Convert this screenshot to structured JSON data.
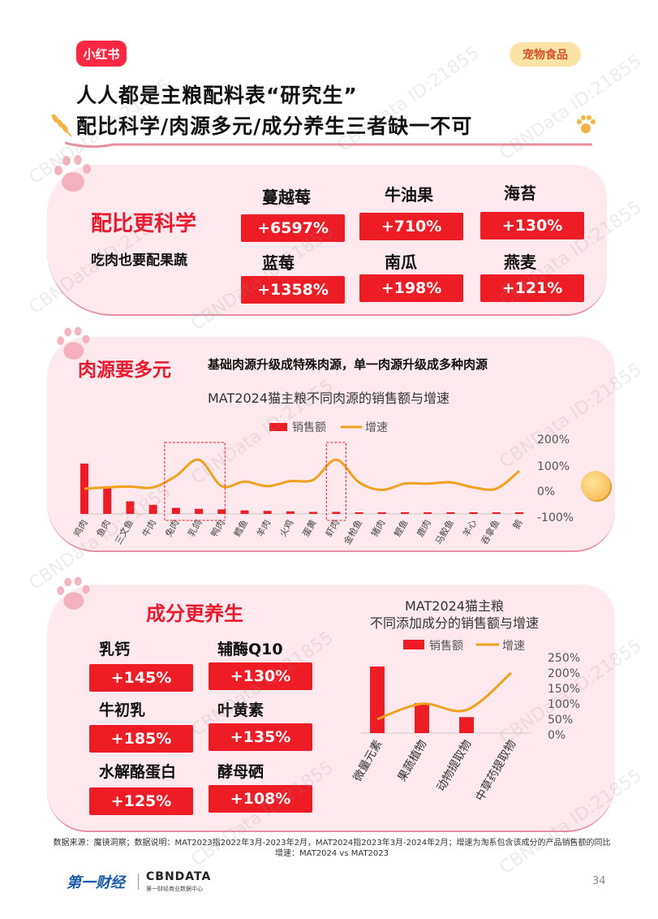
{
  "brand_logo": "小红书",
  "category_tag": "宠物食品",
  "title_line1": "人人都是主粮配料表“研究生”",
  "title_line2": "配比科学/肉源多元/成分养生三者缺一不可",
  "watermark": "CBNData ID:21855",
  "section1": {
    "heading": "配比更科学",
    "subtitle": "吃肉也要配果蔬",
    "items": [
      {
        "name": "蔓越莓",
        "pct": "+6597%"
      },
      {
        "name": "牛油果",
        "pct": "+710%"
      },
      {
        "name": "海苔",
        "pct": "+130%"
      },
      {
        "name": "蓝莓",
        "pct": "+1358%"
      },
      {
        "name": "南瓜",
        "pct": "+198%"
      },
      {
        "name": "燕麦",
        "pct": "+121%"
      }
    ]
  },
  "section2": {
    "heading": "肉源要多元",
    "subtitle": "基础肉源升级成特殊肉源，单一肉源升级成多种肉源",
    "chart_title": "MAT2024猫主粮不同肉源的销售额与增速",
    "legend_bar": "销售额",
    "legend_line": "增速"
  },
  "section3": {
    "heading": "成分更养生",
    "items": [
      {
        "name": "乳钙",
        "pct": "+145%"
      },
      {
        "name": "辅酶Q10",
        "pct": "+130%"
      },
      {
        "name": "牛初乳",
        "pct": "+185%"
      },
      {
        "name": "叶黄素",
        "pct": "+135%"
      },
      {
        "name": "水解酪蛋白",
        "pct": "+125%"
      },
      {
        "name": "酵母硒",
        "pct": "+108%"
      }
    ],
    "chart_title_line1": "MAT2024猫主粮",
    "chart_title_line2": "不同添加成分的销售额与增速",
    "legend_bar": "销售额",
    "legend_line": "增速"
  },
  "chart_data": [
    {
      "type": "bar",
      "title": "MAT2024猫主粮不同肉源的销售额与增速",
      "categories": [
        "鸡肉",
        "鱼肉",
        "三文鱼",
        "牛肉",
        "兔肉",
        "乳鸽",
        "鸭肉",
        "鳕鱼",
        "羊肉",
        "火鸡",
        "蛋黄",
        "虾肉",
        "金枪鱼",
        "猪肉",
        "鲣鱼",
        "鹿肉",
        "马鲛鱼",
        "羊心",
        "吞拿鱼",
        "鹅"
      ],
      "series": [
        {
          "name": "销售额",
          "type": "bar",
          "values": [
            100,
            55,
            25,
            18,
            12,
            10,
            9,
            7,
            6,
            5,
            4,
            4,
            3,
            2,
            2,
            2,
            1,
            1,
            1,
            1
          ]
        },
        {
          "name": "增速",
          "type": "line",
          "axis": "right",
          "values": [
            10,
            15,
            18,
            15,
            60,
            125,
            20,
            38,
            20,
            40,
            45,
            125,
            35,
            5,
            30,
            30,
            35,
            15,
            10,
            80
          ]
        }
      ],
      "y2ticks": [
        "200%",
        "100%",
        "0%",
        "-100%"
      ],
      "y2lim": [
        -100,
        200
      ],
      "legend": "top"
    },
    {
      "type": "bar",
      "title": "MAT2024猫主粮不同添加成分的销售额与增速",
      "categories": [
        "微量元素",
        "果蔬植物",
        "动物提取物",
        "中草药提取物"
      ],
      "series": [
        {
          "name": "销售额",
          "type": "bar",
          "values": [
            100,
            45,
            24,
            0
          ]
        },
        {
          "name": "增速",
          "type": "line",
          "axis": "right",
          "values": [
            45,
            95,
            75,
            195
          ]
        }
      ],
      "y2ticks": [
        "250%",
        "200%",
        "150%",
        "100%",
        "50%",
        "0%"
      ],
      "y2lim": [
        0,
        250
      ],
      "legend": "top"
    }
  ],
  "source_line1": "数据来源：魔镜洞察；数据说明：MAT2023指2022年3月-2023年2月，MAT2024指2023年3月-2024年2月；增速为淘系包含该成分的产品销售额的同比",
  "source_line2": "增速：MAT2024 vs MAT2023",
  "footer_yicai": "第一财经",
  "footer_cbn": "CBNDATA",
  "footer_cbn_sub": "第一财经商业数据中心",
  "page_number": "34",
  "colors": {
    "red": "#ee1c25",
    "line": "#f0a21f",
    "card": "#fde9ee"
  }
}
